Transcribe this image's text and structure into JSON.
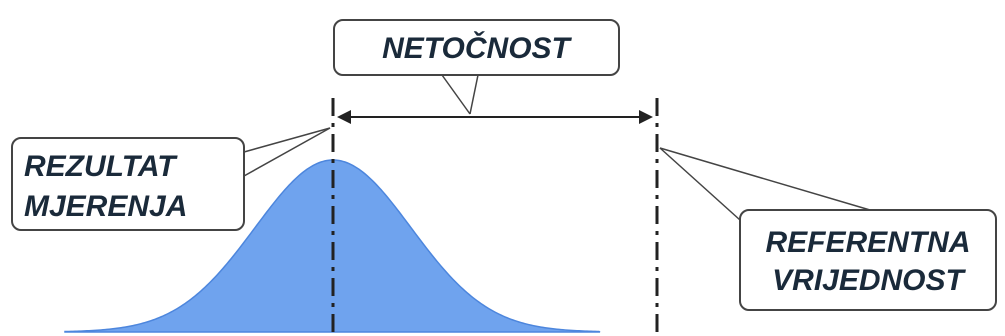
{
  "labels": {
    "inaccuracy": "NETOČNOST",
    "measurement_result_line1": "REZULTAT",
    "measurement_result_line2": "MJERENJA",
    "reference_value_line1": "REFERENTNA",
    "reference_value_line2": "VRIJEDNOST"
  },
  "colors": {
    "curve_fill": "#6fa3ee",
    "curve_stroke": "#4d86dd",
    "text": "#1a2a3a",
    "line": "#222222"
  }
}
